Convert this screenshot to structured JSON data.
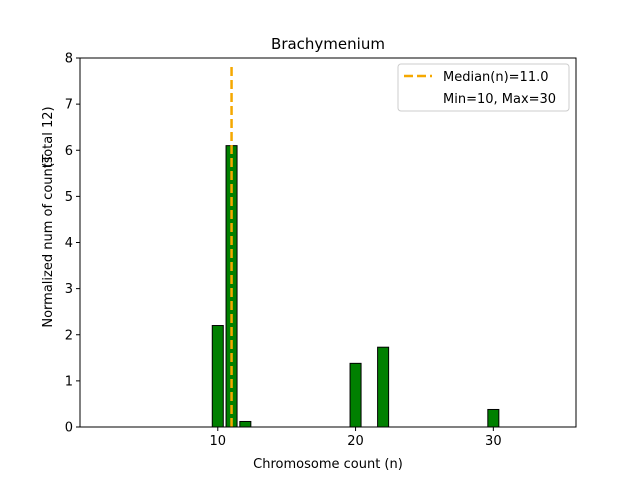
{
  "chart_data": {
    "type": "bar",
    "title": "Brachymenium",
    "xlabel": "Chromosome count (n)",
    "ylabel_line1": "Normalized num of counts",
    "ylabel_line2": "(Total 12)",
    "xlim": [
      0,
      36
    ],
    "ylim": [
      0,
      8
    ],
    "xticks": [
      10,
      20,
      30
    ],
    "yticks": [
      0,
      1,
      2,
      3,
      4,
      5,
      6,
      7,
      8
    ],
    "bar_width": 0.8,
    "bars": [
      {
        "x": 10,
        "value": 2.2
      },
      {
        "x": 11,
        "value": 6.1
      },
      {
        "x": 12,
        "value": 0.12
      },
      {
        "x": 20,
        "value": 1.38
      },
      {
        "x": 22,
        "value": 1.73
      },
      {
        "x": 30,
        "value": 0.38
      }
    ],
    "median": 11.0,
    "legend": {
      "position": "upper right",
      "median_label": "Median(n)=11.0",
      "range_label": "Min=10, Max=30"
    },
    "colors": {
      "bar_fill": "#008000",
      "bar_edge": "#000000",
      "median_line": "#f5a800"
    },
    "grid": false
  }
}
